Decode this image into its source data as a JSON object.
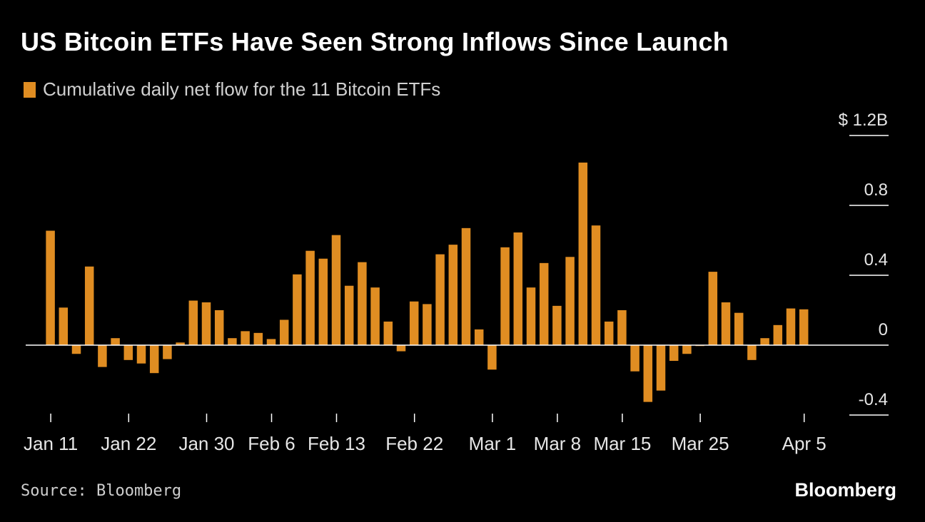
{
  "chart_data": {
    "type": "bar",
    "title": "US Bitcoin ETFs Have Seen Strong Inflows Since Launch",
    "legend": [
      {
        "label": "Cumulative daily net flow for the 11 Bitcoin ETFs",
        "color": "#e08d22"
      }
    ],
    "y_ticks": [
      {
        "value": 1.2,
        "label": "$ 1.2B"
      },
      {
        "value": 0.8,
        "label": "0.8"
      },
      {
        "value": 0.4,
        "label": "0.4"
      },
      {
        "value": 0,
        "label": "0"
      },
      {
        "value": -0.4,
        "label": "-0.4"
      }
    ],
    "ylim": [
      -0.4,
      1.2
    ],
    "x_ticks": [
      "Jan 11",
      "Jan 22",
      "Jan 30",
      "Feb 6",
      "Feb 13",
      "Feb 22",
      "Mar 1",
      "Mar 8",
      "Mar 15",
      "Mar 25",
      "Apr 5"
    ],
    "x_tick_index": [
      0,
      6,
      12,
      17,
      22,
      28,
      34,
      39,
      44,
      50,
      58
    ],
    "values": [
      0.655,
      0.215,
      -0.05,
      0.45,
      -0.125,
      0.04,
      -0.085,
      -0.105,
      -0.16,
      -0.08,
      0.015,
      0.255,
      0.245,
      0.2,
      0.04,
      0.08,
      0.07,
      0.035,
      0.145,
      0.405,
      0.54,
      0.495,
      0.63,
      0.34,
      0.475,
      0.33,
      0.135,
      -0.035,
      0.25,
      0.235,
      0.52,
      0.575,
      0.67,
      0.09,
      -0.14,
      0.56,
      0.645,
      0.33,
      0.47,
      0.225,
      0.505,
      1.045,
      0.685,
      0.135,
      0.2,
      -0.15,
      -0.325,
      -0.26,
      -0.09,
      -0.05,
      -0.005,
      0.42,
      0.245,
      0.185,
      -0.085,
      0.04,
      0.115,
      0.21,
      0.205
    ],
    "bar_color": "#e08d22",
    "grid": false,
    "legend_position": "top-left"
  },
  "footer": {
    "source": "Source: Bloomberg",
    "brand": "Bloomberg"
  }
}
